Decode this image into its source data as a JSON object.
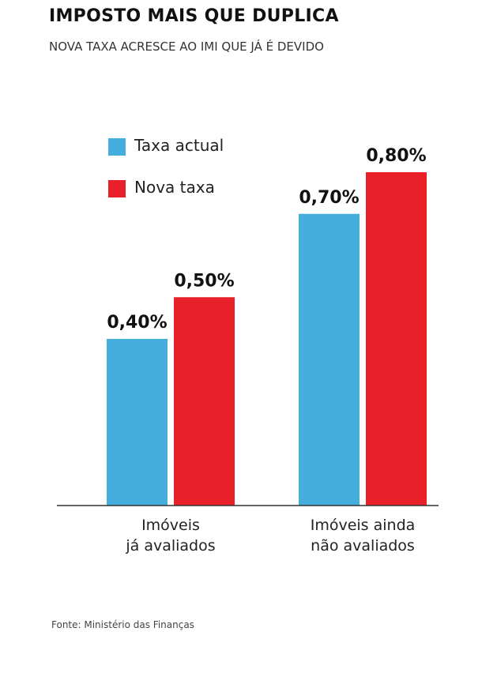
{
  "chart_data": {
    "type": "bar",
    "title": "IMPOSTO MAIS QUE DUPLICA",
    "subtitle": "NOVA TAXA ACRESCE AO IMI QUE JÁ É DEVIDO",
    "source": "Fonte: Ministério das Finanças",
    "categories": [
      "Imóveis\njá avaliados",
      "Imóveis ainda\nnão avaliados"
    ],
    "series": [
      {
        "name": "Taxa actual",
        "color": "#45aedc",
        "values": [
          0.4,
          0.7
        ],
        "value_labels": [
          "0,40%",
          "0,70%"
        ]
      },
      {
        "name": "Nova taxa",
        "color": "#e8202a",
        "values": [
          0.5,
          0.8
        ],
        "value_labels": [
          "0,50%",
          "0,80%"
        ]
      }
    ]
  }
}
